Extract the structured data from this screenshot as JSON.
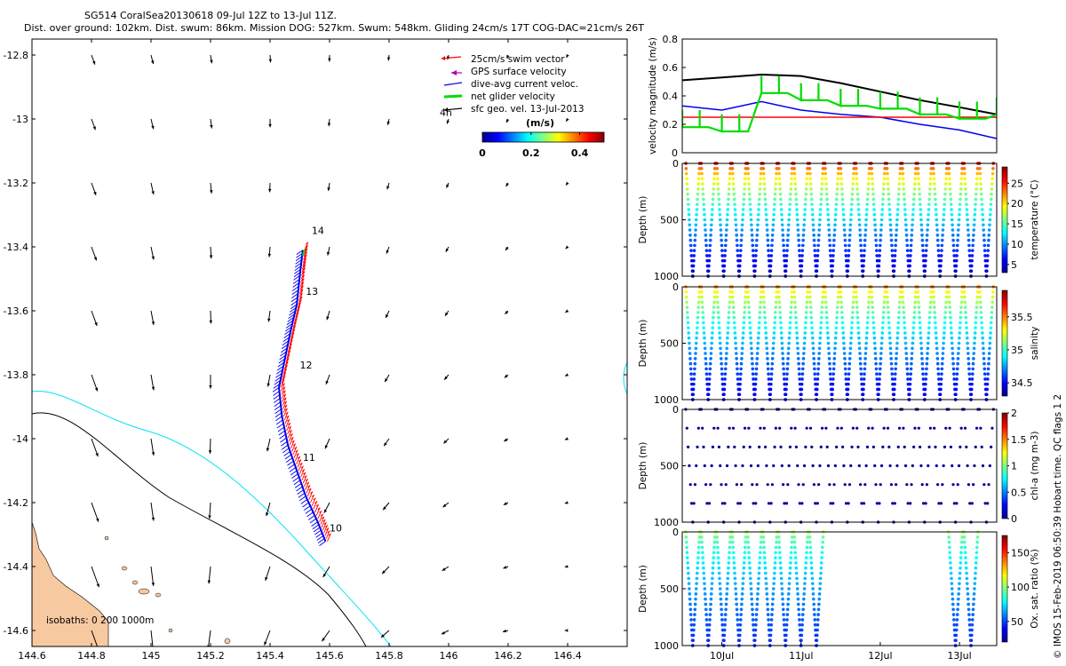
{
  "header": {
    "line1": "SG514 CoralSea20130618 09-Jul 12Z to 13-Jul 11Z.",
    "line2": "Dist. over ground: 102km. Dist. swum: 86km. Mission DOG: 527km. Swum: 548km. Gliding 24cm/s 17T COG-DAC=21cm/s 26T"
  },
  "credit": "© IMOS 15-Feb-2019 06:50:39 Hobart time. QC flags 1  2",
  "colors": {
    "swim": "#ff0000",
    "gps": "#b000b0",
    "dac": "#0000ee",
    "net": "#00dd00",
    "geo": "#000000",
    "land": "#f7c9a0",
    "isobath200": "#00e5ee",
    "isobath1000": "#000000"
  },
  "chart_data": [
    {
      "id": "map",
      "type": "scatter",
      "title": "",
      "xlabel": "",
      "ylabel": "",
      "xlim": [
        144.6,
        146.6
      ],
      "ylim": [
        -14.65,
        -12.75
      ],
      "x_ticks": [
        144.6,
        144.8,
        145,
        145.2,
        145.4,
        145.6,
        145.8,
        146,
        146.2,
        146.4
      ],
      "x_tick_labels": [
        "144.6",
        "144.8",
        "145",
        "145.2",
        "145.4",
        "145.6",
        "145.8",
        "146",
        "146.2",
        "146.4"
      ],
      "y_ticks": [
        -12.8,
        -13,
        -13.2,
        -13.4,
        -13.6,
        -13.8,
        -14,
        -14.2,
        -14.4,
        -14.6
      ],
      "y_tick_labels": [
        "-12.8",
        "-13",
        "-13.2",
        "-13.4",
        "-13.6",
        "-13.8",
        "-14",
        "-14.2",
        "-14.4",
        "-14.6"
      ],
      "legend": {
        "position": "top-right",
        "entries": [
          "25cm/s swim vector",
          "GPS surface velocity",
          "dive-avg current veloc.",
          "net glider velocity",
          "sfc geo. vel. 13-Jul-2013"
        ]
      },
      "colorbar": {
        "label": "(m/s)",
        "ticks": [
          "0",
          "0.2",
          "0.4"
        ],
        "range": [
          0,
          0.5
        ]
      },
      "annotations": [
        {
          "text": "4h",
          "lon": 145.97,
          "lat": -12.99
        },
        {
          "text": "14",
          "lon": 145.54,
          "lat": -13.36
        },
        {
          "text": "13",
          "lon": 145.52,
          "lat": -13.55
        },
        {
          "text": "12",
          "lon": 145.5,
          "lat": -13.78
        },
        {
          "text": "11",
          "lon": 145.51,
          "lat": -14.07
        },
        {
          "text": "10",
          "lon": 145.6,
          "lat": -14.29
        }
      ],
      "isobath_label": "isobaths: 0  200  1000m",
      "glider_track": {
        "lon": [
          145.51,
          145.5,
          145.49,
          145.47,
          145.45,
          145.43,
          145.44,
          145.46,
          145.49,
          145.52,
          145.56,
          145.59
        ],
        "lat": [
          -13.41,
          -13.49,
          -13.58,
          -13.66,
          -13.75,
          -13.84,
          -13.93,
          -14.02,
          -14.1,
          -14.18,
          -14.26,
          -14.33
        ]
      },
      "geo_grid": {
        "lon": [
          144.8,
          145,
          145.2,
          145.4,
          145.6,
          145.8,
          146,
          146.2,
          146.4
        ],
        "lat": [
          -12.8,
          -13,
          -13.2,
          -13.4,
          -13.6,
          -13.8,
          -14,
          -14.2,
          -14.4,
          -14.6
        ]
      }
    },
    {
      "id": "velocity",
      "type": "line",
      "ylabel": "velocity magnitude (m/s)",
      "ylim": [
        0,
        0.8
      ],
      "y_ticks": [
        0,
        0.2,
        0.4,
        0.6,
        0.8
      ],
      "y_tick_labels": [
        "0",
        "0.2",
        "0.4",
        "0.6",
        "0.8"
      ],
      "xlim": [
        9.5,
        13.47
      ],
      "x": [
        9.5,
        10,
        10.5,
        11,
        11.5,
        12,
        12.5,
        13,
        13.47
      ],
      "series": [
        {
          "name": "sfc geo speed",
          "color": "#000000",
          "values": [
            0.51,
            0.53,
            0.55,
            0.54,
            0.49,
            0.43,
            0.37,
            0.32,
            0.27
          ]
        },
        {
          "name": "dive-avg current",
          "color": "#0000ee",
          "values": [
            0.33,
            0.3,
            0.36,
            0.3,
            0.27,
            0.25,
            0.2,
            0.16,
            0.1
          ]
        },
        {
          "name": "swim speed",
          "color": "#ff0000",
          "values": [
            0.25,
            0.25,
            0.25,
            0.25,
            0.25,
            0.25,
            0.25,
            0.25,
            0.25
          ]
        },
        {
          "name": "net glider",
          "color": "#00dd00",
          "values": [
            0.18,
            0.15,
            0.42,
            0.37,
            0.33,
            0.31,
            0.27,
            0.24,
            0.27
          ]
        }
      ]
    },
    {
      "id": "temperature",
      "type": "scatter",
      "ylabel": "Depth (m)",
      "ylim": [
        1000,
        0
      ],
      "y_ticks": [
        0,
        500,
        1000
      ],
      "y_tick_labels": [
        "0",
        "500",
        "1000"
      ],
      "colorbar": {
        "label": "temperature (°C)",
        "ticks": [
          "5",
          "10",
          "15",
          "20",
          "25"
        ],
        "range": [
          3,
          29
        ]
      },
      "dives": 20,
      "max_depth": 1000,
      "surface_value": 27,
      "deep_value": 4.5
    },
    {
      "id": "salinity",
      "type": "scatter",
      "ylabel": "Depth (m)",
      "ylim": [
        1000,
        0
      ],
      "y_ticks": [
        0,
        500,
        1000
      ],
      "y_tick_labels": [
        "0",
        "500",
        "1000"
      ],
      "colorbar": {
        "label": "salinity",
        "ticks": [
          "34.5",
          "35",
          "35.5"
        ],
        "range": [
          34.3,
          35.9
        ]
      },
      "dives": 20,
      "max_depth": 1000,
      "surface_value": 35.5,
      "deep_value": 34.45
    },
    {
      "id": "chla",
      "type": "scatter",
      "ylabel": "Depth (m)",
      "ylim": [
        1000,
        0
      ],
      "y_ticks": [
        0,
        500,
        1000
      ],
      "y_tick_labels": [
        "0",
        "500",
        "1000"
      ],
      "colorbar": {
        "label": "chl-a (mg m-3)",
        "ticks": [
          "0",
          "0.5",
          "1",
          "1.5",
          "2"
        ],
        "range": [
          0,
          2
        ]
      },
      "dives": 20,
      "max_depth": 1000,
      "value": 0.05
    },
    {
      "id": "oxygen",
      "type": "scatter",
      "ylabel": "Depth (m)",
      "ylim": [
        1000,
        0
      ],
      "y_ticks": [
        0,
        500,
        1000
      ],
      "y_tick_labels": [
        "0",
        "500",
        "1000"
      ],
      "x_ticks": [
        10,
        11,
        12,
        13
      ],
      "x_tick_labels": [
        "10Jul",
        "11Jul",
        "12Jul",
        "13Jul"
      ],
      "colorbar": {
        "label": "Ox. sat. ratio (%)",
        "ticks": [
          "50",
          "100",
          "150"
        ],
        "range": [
          20,
          175
        ]
      },
      "dives": 20,
      "max_depth": 1000,
      "surface_value": 105,
      "deep_value": 45,
      "active_dive_ranges": [
        [
          0,
          8
        ],
        [
          17,
          18
        ]
      ]
    }
  ]
}
